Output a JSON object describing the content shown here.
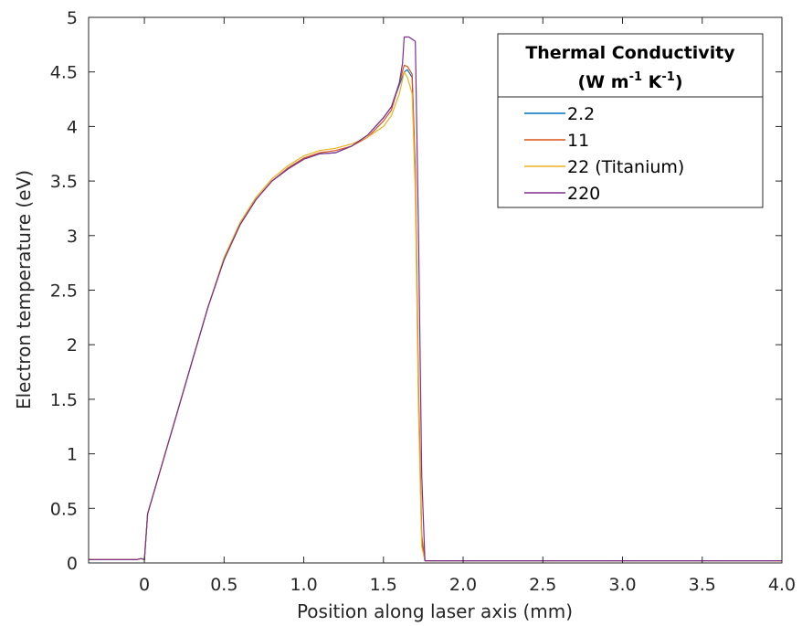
{
  "chart_data": {
    "type": "line",
    "xlabel": "Position along laser axis (mm)",
    "ylabel": "Electron temperature (eV)",
    "xlim": [
      -0.35,
      4.0
    ],
    "ylim": [
      0,
      5
    ],
    "xticks": [
      0,
      0.5,
      1.0,
      1.5,
      2.0,
      2.5,
      3.0,
      3.5,
      4.0
    ],
    "xtick_labels": [
      "0",
      "0.5",
      "1.0",
      "1.5",
      "2.0",
      "2.5",
      "3.0",
      "3.5",
      "4.0"
    ],
    "yticks": [
      0,
      0.5,
      1,
      1.5,
      2,
      2.5,
      3,
      3.5,
      4,
      4.5,
      5
    ],
    "ytick_labels": [
      "0",
      "0.5",
      "1",
      "1.5",
      "2",
      "2.5",
      "3",
      "3.5",
      "4",
      "4.5",
      "5"
    ],
    "grid": false,
    "legend": {
      "placement": "top-right",
      "title_line1": "Thermal Conductivity",
      "title_line2_prefix": "(W m",
      "title_line2_exp1": "-1",
      "title_line2_mid": " K",
      "title_line2_exp2": "-1",
      "title_line2_suffix": ")"
    },
    "series": [
      {
        "name": "2.2",
        "color": "#0072BD",
        "x": [
          -0.35,
          -0.05,
          -0.02,
          0.0,
          0.02,
          0.1,
          0.2,
          0.3,
          0.4,
          0.5,
          0.6,
          0.7,
          0.8,
          0.9,
          1.0,
          1.1,
          1.2,
          1.3,
          1.4,
          1.5,
          1.55,
          1.6,
          1.63,
          1.65,
          1.68,
          1.7,
          1.72,
          1.74,
          1.76,
          1.8,
          2.0,
          3.0,
          4.0
        ],
        "y": [
          0.03,
          0.03,
          0.04,
          0.03,
          0.45,
          0.85,
          1.35,
          1.85,
          2.35,
          2.78,
          3.1,
          3.33,
          3.5,
          3.61,
          3.7,
          3.75,
          3.76,
          3.82,
          3.92,
          4.08,
          4.18,
          4.38,
          4.5,
          4.52,
          4.45,
          3.5,
          1.5,
          0.2,
          0.02,
          0.02,
          0.02,
          0.02,
          0.02
        ]
      },
      {
        "name": "11",
        "color": "#D95319",
        "x": [
          -0.35,
          -0.05,
          -0.02,
          0.0,
          0.02,
          0.1,
          0.2,
          0.3,
          0.4,
          0.5,
          0.6,
          0.7,
          0.8,
          0.9,
          1.0,
          1.1,
          1.2,
          1.3,
          1.4,
          1.5,
          1.55,
          1.6,
          1.63,
          1.65,
          1.68,
          1.7,
          1.72,
          1.74,
          1.76,
          1.8,
          2.0,
          3.0,
          4.0
        ],
        "y": [
          0.03,
          0.03,
          0.04,
          0.03,
          0.45,
          0.85,
          1.35,
          1.85,
          2.35,
          2.78,
          3.1,
          3.33,
          3.5,
          3.62,
          3.71,
          3.76,
          3.78,
          3.82,
          3.9,
          4.05,
          4.15,
          4.4,
          4.56,
          4.55,
          4.48,
          3.6,
          1.6,
          0.25,
          0.02,
          0.02,
          0.02,
          0.02,
          0.02
        ]
      },
      {
        "name": "22 (Titanium)",
        "color": "#EDB120",
        "x": [
          -0.35,
          -0.05,
          -0.02,
          0.0,
          0.02,
          0.1,
          0.2,
          0.3,
          0.4,
          0.5,
          0.6,
          0.7,
          0.8,
          0.9,
          1.0,
          1.1,
          1.2,
          1.3,
          1.4,
          1.5,
          1.55,
          1.6,
          1.63,
          1.65,
          1.68,
          1.7,
          1.72,
          1.74,
          1.76,
          1.8,
          2.0,
          3.0,
          4.0
        ],
        "y": [
          0.03,
          0.03,
          0.04,
          0.03,
          0.45,
          0.85,
          1.35,
          1.85,
          2.35,
          2.8,
          3.12,
          3.35,
          3.52,
          3.64,
          3.73,
          3.78,
          3.8,
          3.84,
          3.9,
          4.0,
          4.1,
          4.3,
          4.5,
          4.45,
          4.3,
          3.4,
          1.4,
          0.15,
          0.02,
          0.02,
          0.02,
          0.02,
          0.02
        ]
      },
      {
        "name": "220",
        "color": "#7E2F8E",
        "x": [
          -0.35,
          -0.05,
          -0.02,
          0.0,
          0.02,
          0.1,
          0.2,
          0.3,
          0.4,
          0.5,
          0.6,
          0.7,
          0.8,
          0.9,
          1.0,
          1.1,
          1.2,
          1.3,
          1.4,
          1.5,
          1.55,
          1.6,
          1.62,
          1.63,
          1.66,
          1.7,
          1.72,
          1.74,
          1.76,
          1.8,
          2.0,
          3.0,
          4.0
        ],
        "y": [
          0.03,
          0.03,
          0.04,
          0.03,
          0.45,
          0.85,
          1.35,
          1.85,
          2.35,
          2.78,
          3.1,
          3.33,
          3.5,
          3.61,
          3.7,
          3.75,
          3.76,
          3.82,
          3.92,
          4.08,
          4.18,
          4.4,
          4.58,
          4.82,
          4.82,
          4.78,
          3.0,
          0.8,
          0.02,
          0.02,
          0.02,
          0.02,
          0.02
        ]
      }
    ]
  }
}
